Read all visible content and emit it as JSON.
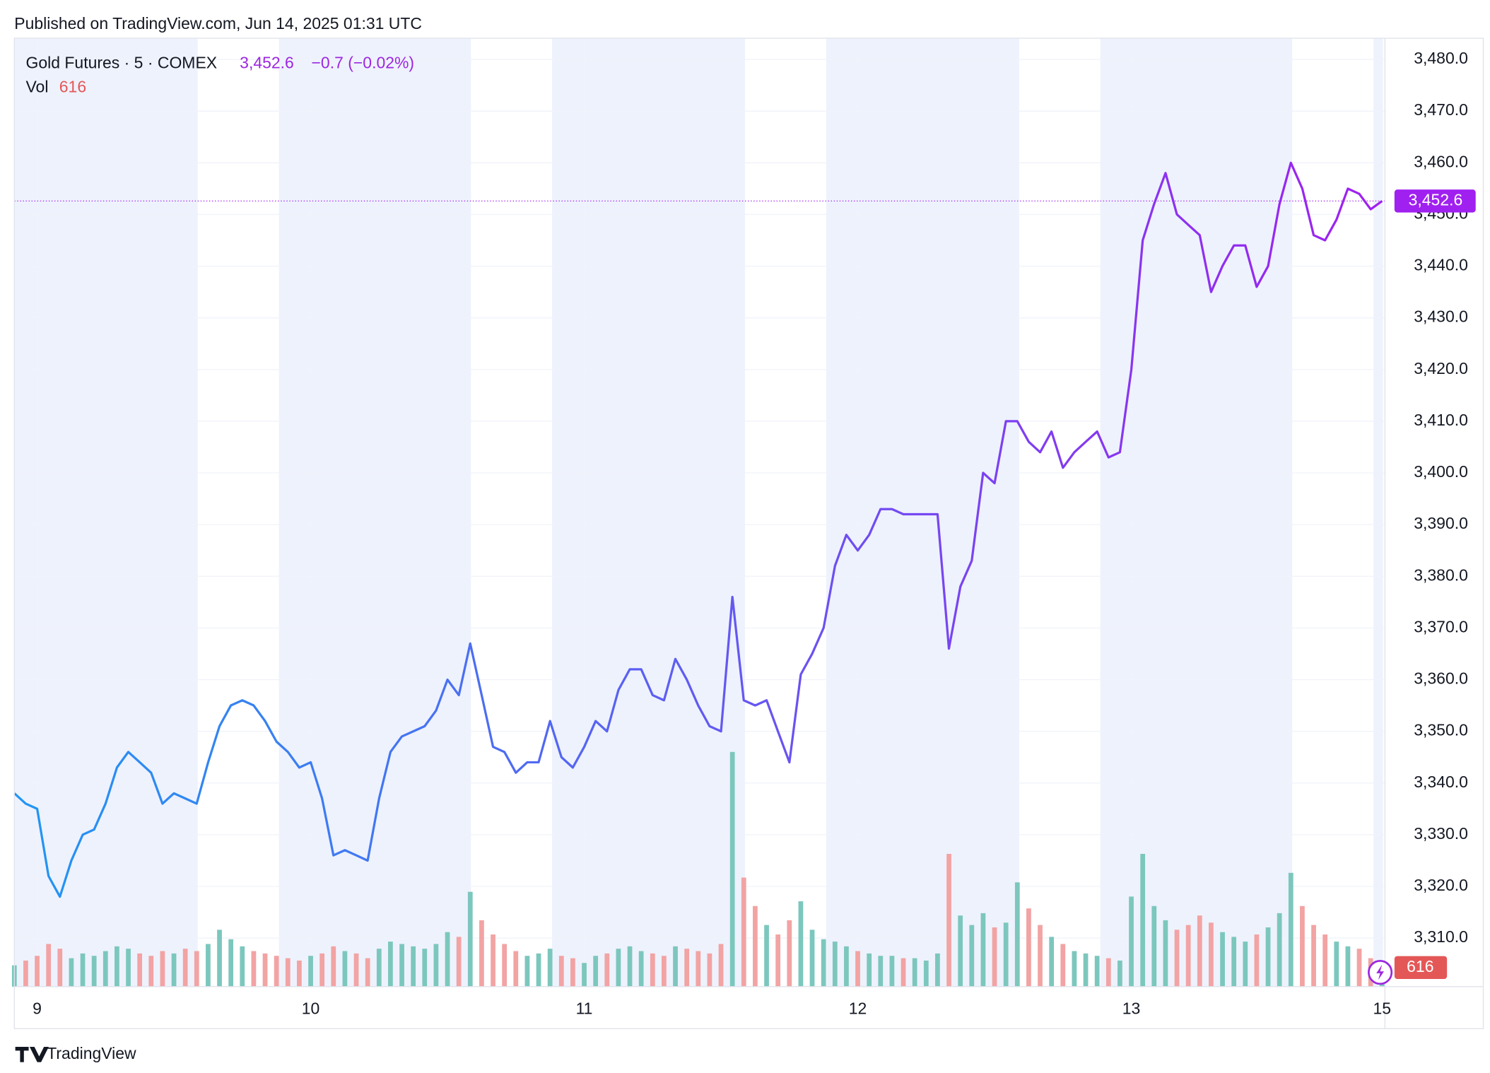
{
  "chart_data": {
    "type": "line",
    "header": {
      "publisher": "Published on TradingView.com, Jun 14, 2025 01:31 UTC",
      "price": "3,452.6",
      "change": "−0.7 (−0.02%)",
      "brand": "TradingView"
    },
    "categories": [
      null,
      null,
      "9",
      null,
      null,
      null,
      null,
      null,
      null,
      null,
      null,
      null,
      null,
      null,
      null,
      null,
      null,
      null,
      null,
      null,
      null,
      null,
      null,
      null,
      null,
      null,
      "10",
      null,
      null,
      null,
      null,
      null,
      null,
      null,
      null,
      null,
      null,
      null,
      null,
      null,
      null,
      null,
      null,
      null,
      null,
      null,
      null,
      null,
      null,
      null,
      "11",
      null,
      null,
      null,
      null,
      null,
      null,
      null,
      null,
      null,
      null,
      null,
      null,
      null,
      null,
      null,
      null,
      null,
      null,
      null,
      null,
      null,
      null,
      null,
      "12",
      null,
      null,
      null,
      null,
      null,
      null,
      null,
      null,
      null,
      null,
      null,
      null,
      null,
      null,
      null,
      null,
      null,
      null,
      null,
      null,
      null,
      null,
      null,
      "13",
      null,
      null,
      null,
      null,
      null,
      null,
      null,
      null,
      null,
      null,
      null,
      null,
      null,
      null,
      null,
      null,
      null,
      null,
      null,
      null,
      null,
      "15"
    ],
    "series": [
      {
        "name": "Gold Futures · 5 · COMEX",
        "type": "line",
        "colors": [
          "#2196f3",
          "#a020f0"
        ],
        "last_label": "3,452.6",
        "values": [
          3338,
          3336,
          3335,
          3322,
          3318,
          3325,
          3330,
          3331,
          3336,
          3343,
          3346,
          3344,
          3342,
          3336,
          3338,
          3337,
          3336,
          3344,
          3351,
          3355,
          3356,
          3355,
          3352,
          3348,
          3346,
          3343,
          3344,
          3337,
          3326,
          3327,
          3326,
          3325,
          3337,
          3346,
          3349,
          3350,
          3351,
          3354,
          3360,
          3357,
          3367,
          3357,
          3347,
          3346,
          3342,
          3344,
          3344,
          3352,
          3345,
          3343,
          3347,
          3352,
          3350,
          3358,
          3362,
          3362,
          3357,
          3356,
          3364,
          3360,
          3355,
          3351,
          3350,
          3376,
          3356,
          3355,
          3356,
          3350,
          3344,
          3361,
          3365,
          3370,
          3382,
          3388,
          3385,
          3388,
          3393,
          3393,
          3392,
          3392,
          3392,
          3392,
          3366,
          3378,
          3383,
          3400,
          3398,
          3410,
          3410,
          3406,
          3404,
          3408,
          3401,
          3404,
          3406,
          3408,
          3403,
          3404,
          3420,
          3445,
          3452,
          3458,
          3450,
          3448,
          3446,
          3435,
          3440,
          3444,
          3444,
          3436,
          3440,
          3452,
          3460,
          3455,
          3446,
          3445,
          3449,
          3455,
          3454,
          3451,
          3452.6
        ]
      },
      {
        "name": "Vol",
        "type": "bar",
        "axis": "y2",
        "up_color": "#7cc7bd",
        "down_color": "#f2a3a3",
        "last_label": "616",
        "values": [
          900,
          1100,
          1300,
          1800,
          1600,
          1200,
          1400,
          1300,
          1500,
          1700,
          1600,
          1400,
          1300,
          1500,
          1400,
          1600,
          1500,
          1800,
          2400,
          2000,
          1700,
          1500,
          1400,
          1300,
          1200,
          1100,
          1300,
          1400,
          1700,
          1500,
          1400,
          1200,
          1600,
          1900,
          1800,
          1700,
          1600,
          1800,
          2300,
          2100,
          4000,
          2800,
          2200,
          1800,
          1500,
          1300,
          1400,
          1600,
          1300,
          1200,
          1000,
          1300,
          1400,
          1600,
          1700,
          1500,
          1400,
          1300,
          1700,
          1600,
          1500,
          1400,
          1800,
          9900,
          4600,
          3400,
          2600,
          2200,
          2800,
          3600,
          2400,
          2000,
          1900,
          1700,
          1500,
          1400,
          1300,
          1300,
          1200,
          1200,
          1100,
          1400,
          5600,
          3000,
          2600,
          3100,
          2500,
          2700,
          4400,
          3300,
          2600,
          2100,
          1800,
          1500,
          1400,
          1300,
          1200,
          1100,
          3800,
          5600,
          3400,
          2800,
          2400,
          2600,
          3000,
          2700,
          2300,
          2100,
          1900,
          2200,
          2500,
          3100,
          4800,
          3400,
          2600,
          2200,
          1900,
          1700,
          1600,
          1200,
          616
        ]
      }
    ],
    "ylim": [
      3300.6,
      3484.1
    ],
    "yticks": [
      {
        "value": 3310,
        "label": "3,310.0"
      },
      {
        "value": 3320,
        "label": "3,320.0"
      },
      {
        "value": 3330,
        "label": "3,330.0"
      },
      {
        "value": 3340,
        "label": "3,340.0"
      },
      {
        "value": 3350,
        "label": "3,350.0"
      },
      {
        "value": 3360,
        "label": "3,360.0"
      },
      {
        "value": 3370,
        "label": "3,370.0"
      },
      {
        "value": 3380,
        "label": "3,380.0"
      },
      {
        "value": 3390,
        "label": "3,390.0"
      },
      {
        "value": 3400,
        "label": "3,400.0"
      },
      {
        "value": 3410,
        "label": "3,410.0"
      },
      {
        "value": 3420,
        "label": "3,420.0"
      },
      {
        "value": 3430,
        "label": "3,430.0"
      },
      {
        "value": 3440,
        "label": "3,440.0"
      },
      {
        "value": 3450,
        "label": "3,450.0"
      },
      {
        "value": 3460,
        "label": "3,460.0"
      },
      {
        "value": 3470,
        "label": "3,470.0"
      },
      {
        "value": 3480,
        "label": "3,480.0"
      }
    ],
    "y2lim": [
      0,
      40000
    ],
    "grid": true
  }
}
